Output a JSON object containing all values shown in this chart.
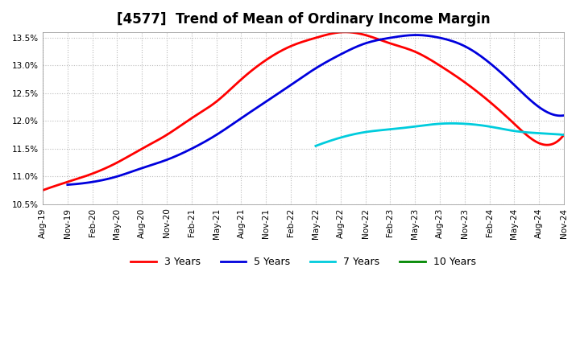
{
  "title": "[4577]  Trend of Mean of Ordinary Income Margin",
  "title_fontsize": 12,
  "ylim": [
    0.105,
    0.136
  ],
  "yticks": [
    0.105,
    0.11,
    0.115,
    0.12,
    0.125,
    0.13,
    0.135
  ],
  "background_color": "#ffffff",
  "plot_bg_color": "#ffffff",
  "grid_color": "#bbbbbb",
  "x_labels": [
    "Aug-19",
    "Nov-19",
    "Feb-20",
    "May-20",
    "Aug-20",
    "Nov-20",
    "Feb-21",
    "May-21",
    "Aug-21",
    "Nov-21",
    "Feb-22",
    "May-22",
    "Aug-22",
    "Nov-22",
    "Feb-23",
    "May-23",
    "Aug-23",
    "Nov-23",
    "Feb-24",
    "May-24",
    "Aug-24",
    "Nov-24"
  ],
  "series_3y": {
    "color": "#ff0000",
    "x_indices": [
      0,
      1,
      2,
      3,
      4,
      5,
      6,
      7,
      8,
      9,
      10,
      11,
      12,
      13,
      14,
      15,
      16,
      17,
      18,
      19,
      20,
      21
    ],
    "values": [
      0.1075,
      0.109,
      0.1105,
      0.1125,
      0.115,
      0.1175,
      0.1205,
      0.1235,
      0.1275,
      0.131,
      0.1335,
      0.135,
      0.136,
      0.1355,
      0.134,
      0.1325,
      0.13,
      0.127,
      0.1235,
      0.1195,
      0.116,
      0.1175
    ]
  },
  "series_5y": {
    "color": "#0000dd",
    "x_indices": [
      1,
      2,
      3,
      4,
      5,
      6,
      7,
      8,
      9,
      10,
      11,
      12,
      13,
      14,
      15,
      16,
      17,
      18,
      19,
      20,
      21
    ],
    "values": [
      0.1085,
      0.109,
      0.11,
      0.1115,
      0.113,
      0.115,
      0.1175,
      0.1205,
      0.1235,
      0.1265,
      0.1295,
      0.132,
      0.134,
      0.135,
      0.1355,
      0.135,
      0.1335,
      0.1305,
      0.1265,
      0.1225,
      0.121
    ]
  },
  "series_7y": {
    "color": "#00ccdd",
    "x_indices": [
      11,
      12,
      13,
      14,
      15,
      16,
      17,
      18,
      19,
      20,
      21
    ],
    "values": [
      0.1155,
      0.117,
      0.118,
      0.1185,
      0.119,
      0.1195,
      0.1195,
      0.119,
      0.1182,
      0.1178,
      0.1175
    ]
  },
  "series_10y": {
    "color": "#008800",
    "x_indices": [],
    "values": []
  },
  "legend_labels": [
    "3 Years",
    "5 Years",
    "7 Years",
    "10 Years"
  ],
  "legend_colors": [
    "#ff0000",
    "#0000dd",
    "#00ccdd",
    "#008800"
  ]
}
